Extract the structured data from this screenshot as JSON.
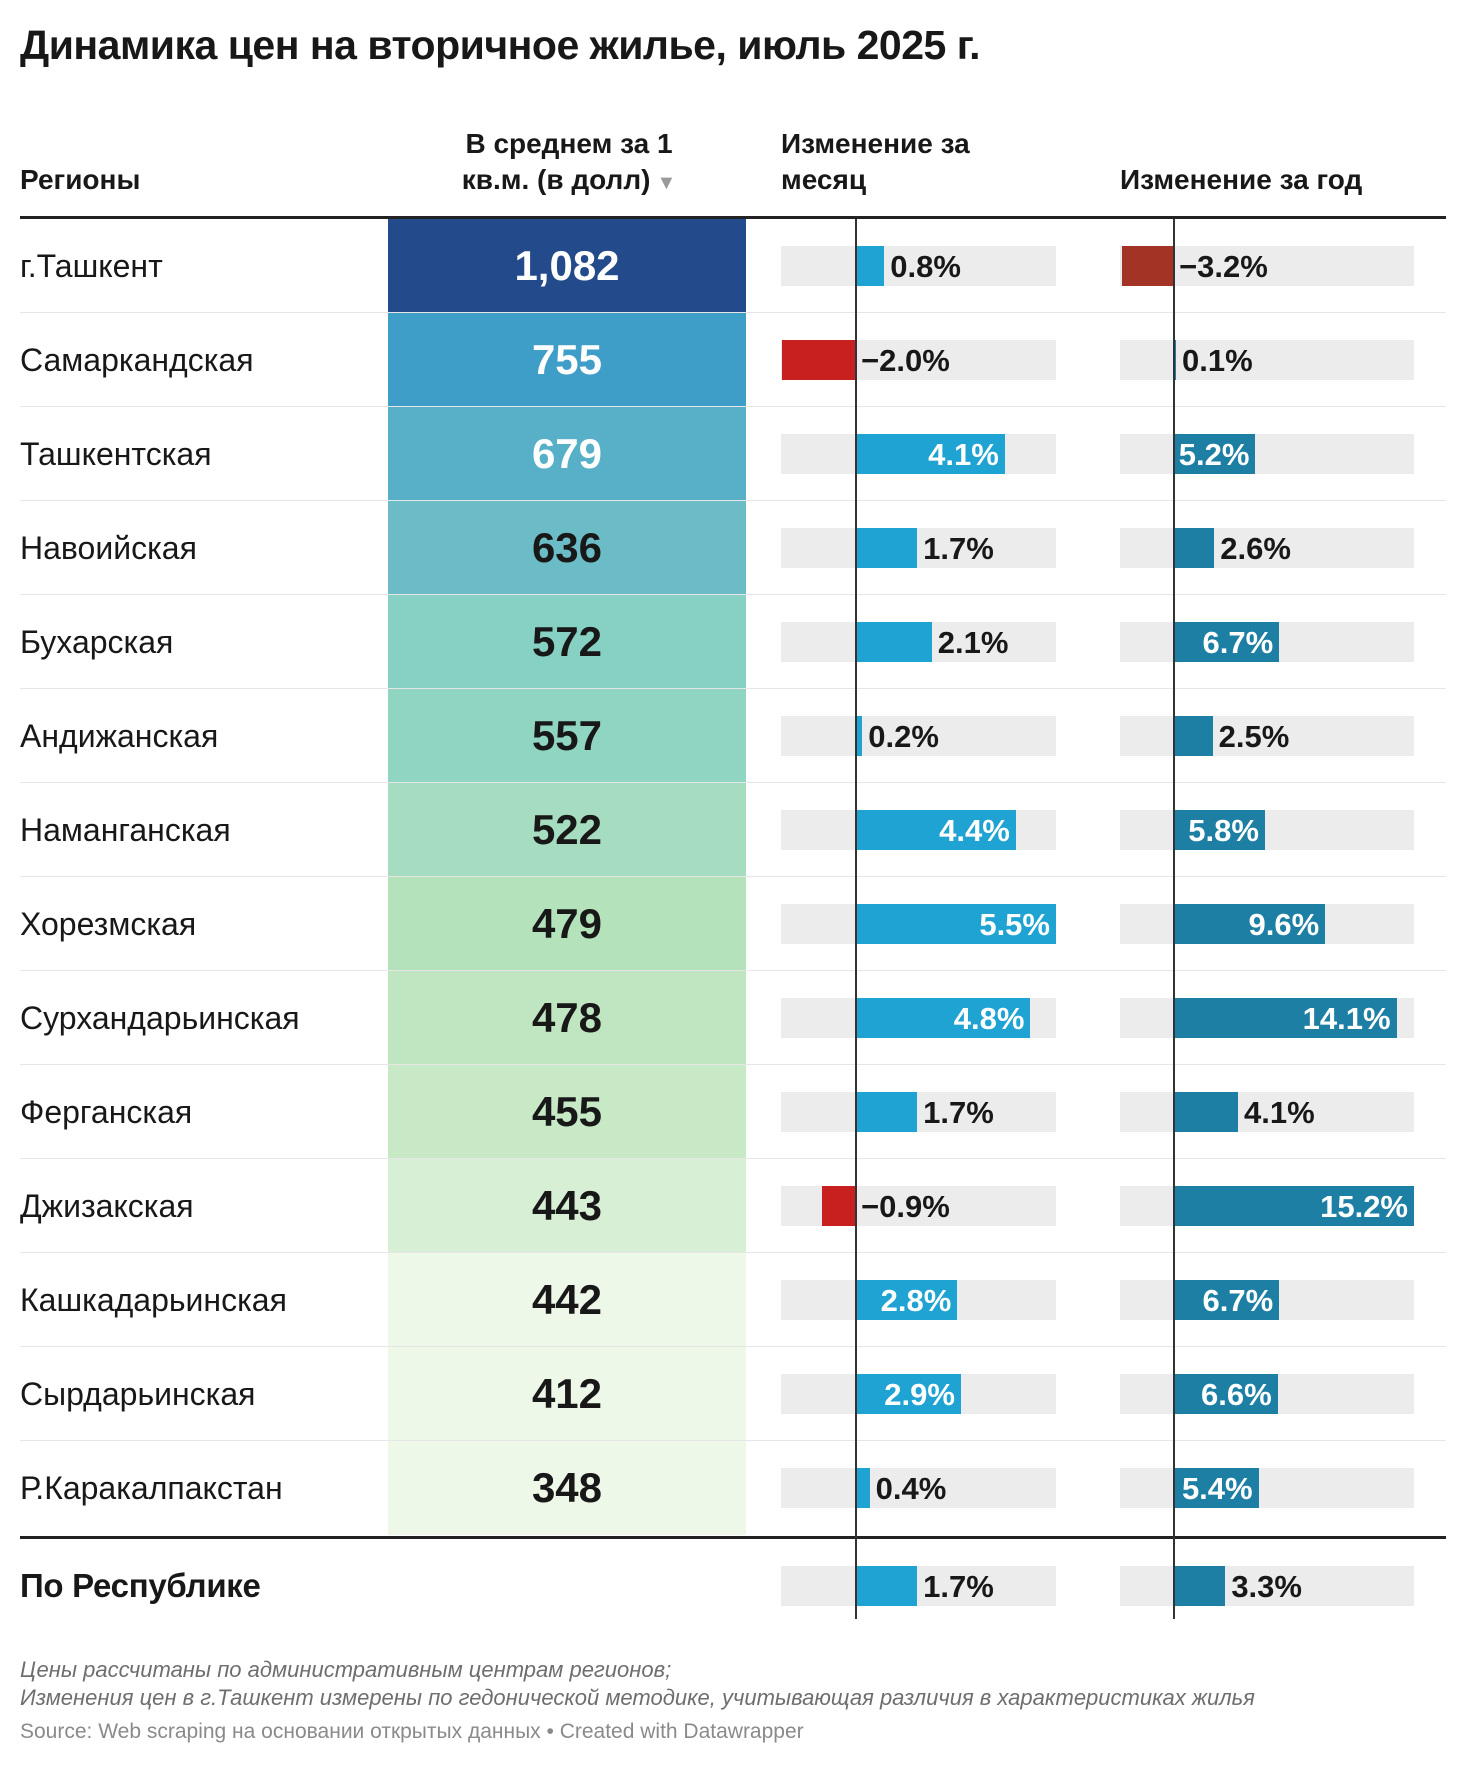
{
  "title": "Динамика цен на вторичное жилье, июль 2025 г.",
  "header": {
    "region": "Регионы",
    "price_line1": "В среднем за 1",
    "price_line2": "кв.м. (в долл)",
    "sort_icon": "▼",
    "month_line1": "Изменение за",
    "month_line2": "месяц",
    "year": "Изменение за год"
  },
  "colors": {
    "positive_month": "#1fa3d2",
    "positive_year": "#1d7fa3",
    "negative": "#c8201e",
    "negative_dark": "#a33325",
    "track": "#ececec",
    "price_scale": [
      "#234a8b",
      "#3f9ec7",
      "#57b0c8",
      "#6bbcc6",
      "#86d0c4",
      "#8fd5c2",
      "#a6dcc0",
      "#b4e2bb",
      "#bfe6c0",
      "#c7e9c6",
      "#d7f0d5",
      "#eef8e9"
    ]
  },
  "chart_data": {
    "type": "table",
    "columns": [
      "Регионы",
      "В среднем за 1 кв.м. (в долл)",
      "Изменение за месяц",
      "Изменение за год"
    ],
    "rows": [
      {
        "region": "г.Ташкент",
        "price": 1082,
        "price_label": "1,082",
        "month": 0.8,
        "month_label": "0.8%",
        "year": -3.2,
        "year_label": "−3.2%"
      },
      {
        "region": "Самаркандская",
        "price": 755,
        "price_label": "755",
        "month": -2.0,
        "month_label": "−2.0%",
        "year": 0.1,
        "year_label": "0.1%"
      },
      {
        "region": "Ташкентская",
        "price": 679,
        "price_label": "679",
        "month": 4.1,
        "month_label": "4.1%",
        "year": 5.2,
        "year_label": "5.2%"
      },
      {
        "region": "Навоийская",
        "price": 636,
        "price_label": "636",
        "month": 1.7,
        "month_label": "1.7%",
        "year": 2.6,
        "year_label": "2.6%"
      },
      {
        "region": "Бухарская",
        "price": 572,
        "price_label": "572",
        "month": 2.1,
        "month_label": "2.1%",
        "year": 6.7,
        "year_label": "6.7%"
      },
      {
        "region": "Андижанская",
        "price": 557,
        "price_label": "557",
        "month": 0.2,
        "month_label": "0.2%",
        "year": 2.5,
        "year_label": "2.5%"
      },
      {
        "region": "Наманганская",
        "price": 522,
        "price_label": "522",
        "month": 4.4,
        "month_label": "4.4%",
        "year": 5.8,
        "year_label": "5.8%"
      },
      {
        "region": "Хорезмская",
        "price": 479,
        "price_label": "479",
        "month": 5.5,
        "month_label": "5.5%",
        "year": 9.6,
        "year_label": "9.6%"
      },
      {
        "region": "Сурхандарьинская",
        "price": 478,
        "price_label": "478",
        "month": 4.8,
        "month_label": "4.8%",
        "year": 14.1,
        "year_label": "14.1%"
      },
      {
        "region": "Ферганская",
        "price": 455,
        "price_label": "455",
        "month": 1.7,
        "month_label": "1.7%",
        "year": 4.1,
        "year_label": "4.1%"
      },
      {
        "region": "Джизакская",
        "price": 443,
        "price_label": "443",
        "month": -0.9,
        "month_label": "−0.9%",
        "year": 15.2,
        "year_label": "15.2%"
      },
      {
        "region": "Кашкадарьинская",
        "price": 442,
        "price_label": "442",
        "month": 2.8,
        "month_label": "2.8%",
        "year": 6.7,
        "year_label": "6.7%"
      },
      {
        "region": "Сырдарьинская",
        "price": 412,
        "price_label": "412",
        "month": 2.9,
        "month_label": "2.9%",
        "year": 6.6,
        "year_label": "6.6%"
      },
      {
        "region": "Р.Каракалпакстан",
        "price": 348,
        "price_label": "348",
        "month": 0.4,
        "month_label": "0.4%",
        "year": 5.4,
        "year_label": "5.4%"
      }
    ],
    "total": {
      "region": "По Республике",
      "month": 1.7,
      "month_label": "1.7%",
      "year": 3.3,
      "year_label": "3.3%"
    },
    "month_range": [
      -2.0,
      5.5
    ],
    "year_range": [
      -3.2,
      15.2
    ]
  },
  "footer": {
    "note1": "Цены рассчитаны по административным центрам регионов;",
    "note2": "Изменения цен в г.Ташкент измерены по гедонической методике, учитывающая различия в характеристиках жилья",
    "source": "Source: Web scraping на основании открытых данных • Created with Datawrapper"
  }
}
